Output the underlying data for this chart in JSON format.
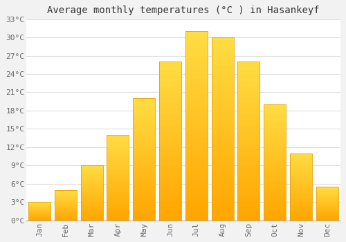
{
  "title": "Average monthly temperatures (°C ) in Hasankeyf",
  "months": [
    "Jan",
    "Feb",
    "Mar",
    "Apr",
    "May",
    "Jun",
    "Jul",
    "Aug",
    "Sep",
    "Oct",
    "Nov",
    "Dec"
  ],
  "values": [
    3.0,
    5.0,
    9.0,
    14.0,
    20.0,
    26.0,
    31.0,
    30.0,
    26.0,
    19.0,
    11.0,
    5.5
  ],
  "bar_color_top": "#FFDD44",
  "bar_color_bottom": "#FFA500",
  "bar_edge_color": "#E8A000",
  "background_color": "#F2F2F2",
  "plot_bg_color": "#FFFFFF",
  "grid_color": "#DDDDDD",
  "ylim": [
    0,
    33
  ],
  "yticks": [
    0,
    3,
    6,
    9,
    12,
    15,
    18,
    21,
    24,
    27,
    30,
    33
  ],
  "ytick_labels": [
    "0°C",
    "3°C",
    "6°C",
    "9°C",
    "12°C",
    "15°C",
    "18°C",
    "21°C",
    "24°C",
    "27°C",
    "30°C",
    "33°C"
  ],
  "title_fontsize": 10,
  "tick_fontsize": 8,
  "bar_width": 0.85,
  "figsize": [
    5.0,
    3.5
  ],
  "dpi": 100
}
